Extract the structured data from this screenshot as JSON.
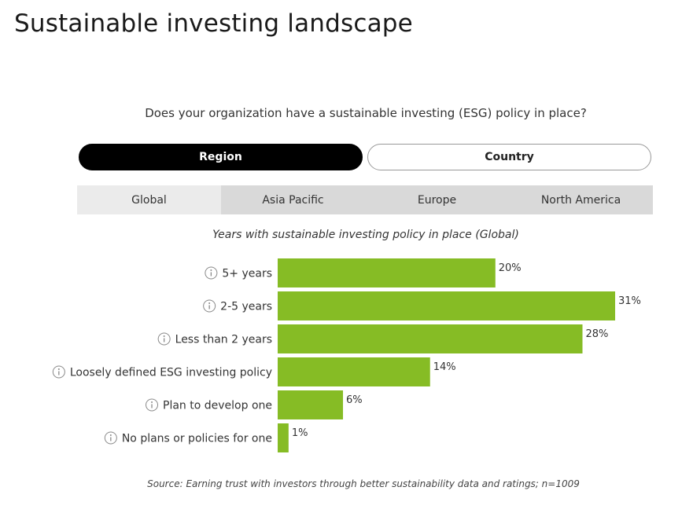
{
  "page": {
    "title": "Sustainable investing landscape"
  },
  "question": "Does your organization have a sustainable investing (ESG) policy in place?",
  "toggle": {
    "region_label": "Region",
    "country_label": "Country",
    "selected": "Region"
  },
  "tabs": [
    {
      "label": "Global",
      "active": true
    },
    {
      "label": "Asia Pacific",
      "active": false
    },
    {
      "label": "Europe",
      "active": false
    },
    {
      "label": "North America",
      "active": false
    }
  ],
  "chart_data": {
    "type": "bar",
    "orientation": "horizontal",
    "title": "Years with sustainable investing policy in place (Global)",
    "categories": [
      "5+ years",
      "2-5 years",
      "Less than 2 years",
      "Loosely defined ESG investing policy",
      "Plan to develop one",
      "No plans or policies for one"
    ],
    "values": [
      20,
      31,
      28,
      14,
      6,
      1
    ],
    "value_labels": [
      "20%",
      "31%",
      "28%",
      "14%",
      "6%",
      "1%"
    ],
    "unit": "%",
    "xlim": [
      0,
      31
    ],
    "bar_color": "#86bc25",
    "grid": false,
    "legend": false
  },
  "source": "Source: Earning trust with investors through better sustainability data and ratings; n=1009",
  "icons": {
    "info": "info-circle-icon"
  },
  "colors": {
    "accent": "#86bc25",
    "toggle_active": "#000000",
    "tab_bar": "#d9d9d9",
    "tab_active": "#ebebeb"
  }
}
